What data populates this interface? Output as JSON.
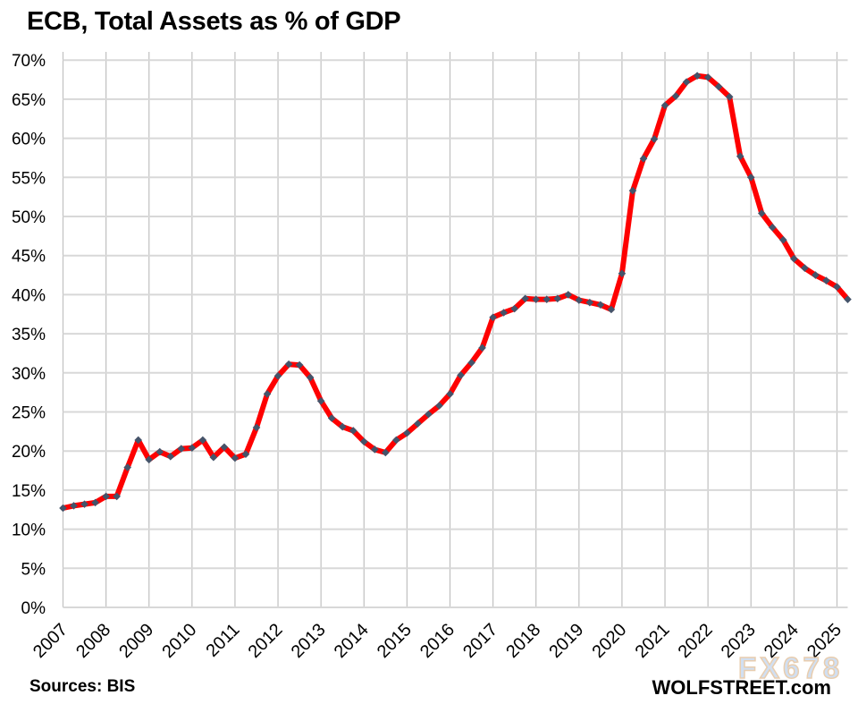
{
  "chart_data": {
    "type": "line",
    "title": "ECB, Total Assets as % of GDP",
    "xlabel": "",
    "ylabel": "",
    "x_tick_labels": [
      "2007",
      "2008",
      "2009",
      "2010",
      "2011",
      "2012",
      "2013",
      "2014",
      "2015",
      "2016",
      "2017",
      "2018",
      "2019",
      "2020",
      "2021",
      "2022",
      "2023",
      "2024",
      "2025"
    ],
    "y_ticks": [
      0,
      5,
      10,
      15,
      20,
      25,
      30,
      35,
      40,
      45,
      50,
      55,
      60,
      65,
      70
    ],
    "y_tick_suffix": "%",
    "ylim": [
      0,
      71.5
    ],
    "grid": true,
    "legend_position": "none",
    "marker": "diamond",
    "series": [
      {
        "name": "ECB total assets as % of GDP",
        "start": "2007 Q1",
        "end": "2025 Q2",
        "frequency": "quarterly",
        "values": [
          12.7,
          13.0,
          13.2,
          13.4,
          14.2,
          14.2,
          17.9,
          21.4,
          18.9,
          19.9,
          19.3,
          20.3,
          20.4,
          21.4,
          19.2,
          20.5,
          19.1,
          19.6,
          23.0,
          27.3,
          29.6,
          31.1,
          31.0,
          29.4,
          26.4,
          24.2,
          23.1,
          22.6,
          21.2,
          20.2,
          19.8,
          21.4,
          22.3,
          23.5,
          24.7,
          25.8,
          27.3,
          29.7,
          31.3,
          33.2,
          37.1,
          37.7,
          38.2,
          39.5,
          39.4,
          39.4,
          39.5,
          40.0,
          39.3,
          39.0,
          38.7,
          38.1,
          42.7,
          53.3,
          57.4,
          59.9,
          64.2,
          65.4,
          67.2,
          68.0,
          67.8,
          66.6,
          65.3,
          57.7,
          55.0,
          50.4,
          48.6,
          47.0,
          44.6,
          43.4,
          42.5,
          41.8,
          41.0,
          39.4
        ]
      }
    ],
    "colors": {
      "line": "#fe0000",
      "marker": "#44546a",
      "grid_h": "#d8d8d8",
      "grid_v": "#c2c2c2",
      "text": "#000000",
      "watermark_fill": "#c8d9ee",
      "watermark_stroke": "#e4c39e",
      "background": "#ffffff"
    }
  },
  "annotations": {
    "sources": "Sources: BIS",
    "brand": "WOLFSTREET.com",
    "watermark": "FX678"
  }
}
